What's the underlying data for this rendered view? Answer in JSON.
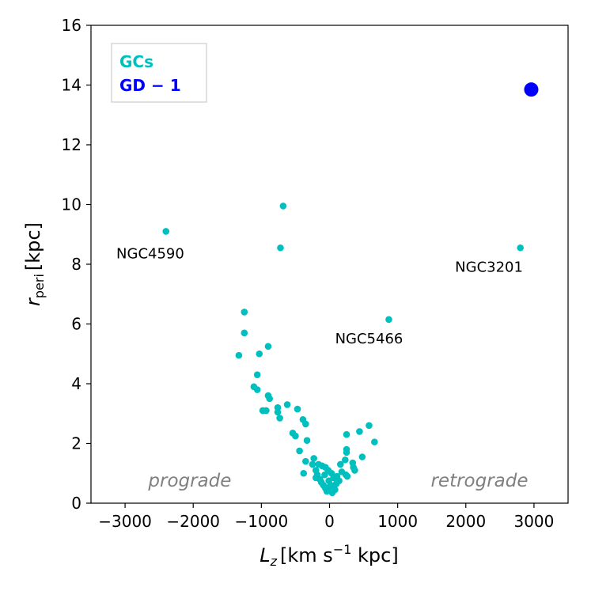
{
  "chart_data": {
    "type": "scatter",
    "xlabel_main": "L",
    "xlabel_sub": "z",
    "xlabel_unit_pre": "[km s",
    "xlabel_unit_sup": "−1",
    "xlabel_unit_post": " kpc]",
    "ylabel_main": "r",
    "ylabel_sub": "peri",
    "ylabel_unit": "[kpc]",
    "xlim": [
      -3500,
      3500
    ],
    "ylim": [
      0,
      16
    ],
    "xticks": [
      -3000,
      -2000,
      -1000,
      0,
      1000,
      2000,
      3000
    ],
    "xtick_labels": [
      "−3000",
      "−2000",
      "−1000",
      "0",
      "1000",
      "2000",
      "3000"
    ],
    "yticks": [
      0,
      2,
      4,
      6,
      8,
      10,
      12,
      14,
      16
    ],
    "ytick_labels": [
      "0",
      "2",
      "4",
      "6",
      "8",
      "10",
      "12",
      "14",
      "16"
    ],
    "grid": false,
    "legend_position": "top-left",
    "series": [
      {
        "name": "GCs",
        "color": "#00bfbf",
        "points": [
          [
            -2400,
            9.1
          ],
          [
            -680,
            9.95
          ],
          [
            -720,
            8.55
          ],
          [
            870,
            6.15
          ],
          [
            2800,
            8.55
          ],
          [
            -1250,
            6.4
          ],
          [
            -1250,
            5.7
          ],
          [
            -1330,
            4.95
          ],
          [
            -900,
            5.25
          ],
          [
            -1030,
            5.0
          ],
          [
            -1060,
            4.3
          ],
          [
            -1110,
            3.9
          ],
          [
            -1060,
            3.8
          ],
          [
            -900,
            3.6
          ],
          [
            -880,
            3.5
          ],
          [
            -620,
            3.3
          ],
          [
            -980,
            3.1
          ],
          [
            -930,
            3.1
          ],
          [
            -760,
            3.2
          ],
          [
            -760,
            3.05
          ],
          [
            -470,
            3.15
          ],
          [
            -390,
            2.8
          ],
          [
            -350,
            2.65
          ],
          [
            -730,
            2.85
          ],
          [
            -540,
            2.35
          ],
          [
            -500,
            2.25
          ],
          [
            -330,
            2.1
          ],
          [
            -440,
            1.75
          ],
          [
            -230,
            1.5
          ],
          [
            -250,
            1.3
          ],
          [
            -350,
            1.4
          ],
          [
            -200,
            1.1
          ],
          [
            -180,
            0.95
          ],
          [
            -140,
            0.8
          ],
          [
            -120,
            0.7
          ],
          [
            -90,
            0.6
          ],
          [
            -60,
            0.5
          ],
          [
            -40,
            0.4
          ],
          [
            -30,
            0.45
          ],
          [
            0,
            0.55
          ],
          [
            20,
            0.6
          ],
          [
            40,
            0.35
          ],
          [
            80,
            0.45
          ],
          [
            100,
            0.65
          ],
          [
            140,
            0.75
          ],
          [
            60,
            0.85
          ],
          [
            -70,
            0.95
          ],
          [
            30,
            1.0
          ],
          [
            -20,
            1.1
          ],
          [
            -60,
            1.2
          ],
          [
            -110,
            1.25
          ],
          [
            -160,
            1.3
          ],
          [
            180,
            1.05
          ],
          [
            240,
            0.95
          ],
          [
            260,
            0.9
          ],
          [
            160,
            1.3
          ],
          [
            230,
            1.45
          ],
          [
            350,
            1.2
          ],
          [
            370,
            1.1
          ],
          [
            340,
            1.35
          ],
          [
            250,
            1.7
          ],
          [
            250,
            1.8
          ],
          [
            480,
            1.55
          ],
          [
            660,
            2.05
          ],
          [
            440,
            2.4
          ],
          [
            580,
            2.6
          ],
          [
            250,
            2.3
          ],
          [
            -380,
            1.0
          ],
          [
            -200,
            0.85
          ],
          [
            -10,
            0.75
          ],
          [
            110,
            0.9
          ]
        ]
      },
      {
        "name": "GD − 1",
        "color": "#0000ff",
        "points": [
          [
            2960,
            13.85
          ]
        ]
      }
    ],
    "annotations": [
      {
        "text": "NGC4590",
        "x": -2630,
        "y": 8.2,
        "style": "name"
      },
      {
        "text": "NGC3201",
        "x": 2340,
        "y": 7.75,
        "style": "name"
      },
      {
        "text": "NGC5466",
        "x": 580,
        "y": 5.35,
        "style": "name"
      },
      {
        "text": "prograde",
        "x": -2050,
        "y": 0.55,
        "style": "region"
      },
      {
        "text": "retrograde",
        "x": 2200,
        "y": 0.55,
        "style": "region"
      }
    ]
  }
}
